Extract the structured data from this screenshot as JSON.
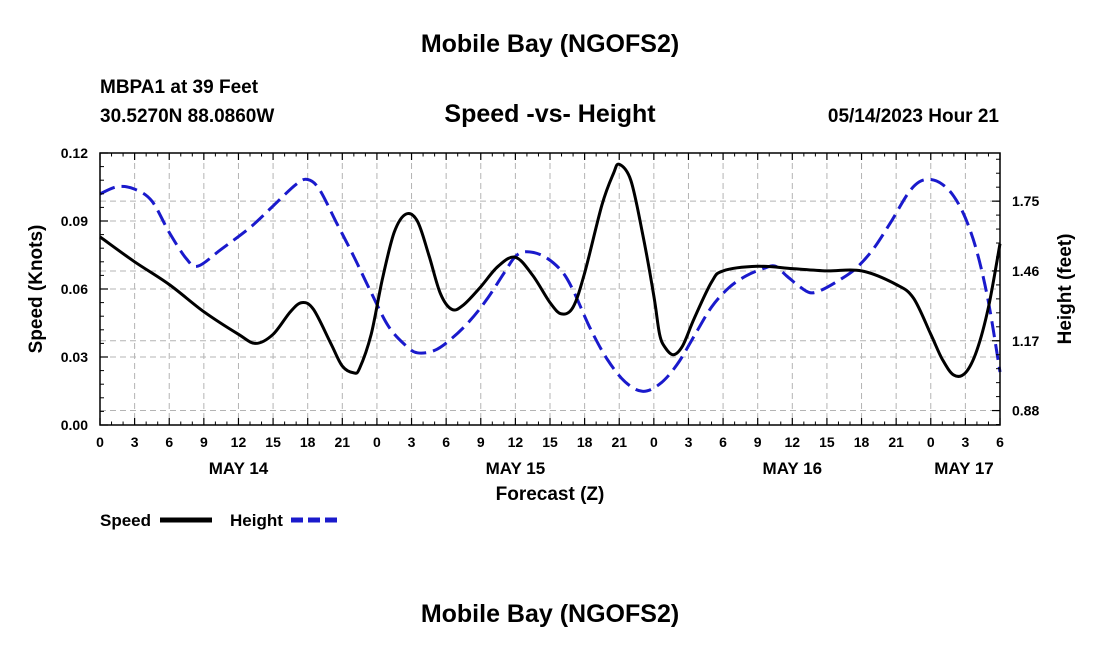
{
  "header": {
    "title": "Mobile Bay (NGOFS2)",
    "station": "MBPA1 at 39 Feet",
    "coordinates": "30.5270N  88.0860W",
    "subtitle": "Speed -vs- Height",
    "datetime": "05/14/2023 Hour 21"
  },
  "footer": {
    "title": "Mobile Bay (NGOFS2)"
  },
  "chart_data": {
    "type": "line",
    "title": "Speed -vs- Height",
    "xlabel": "Forecast (Z)",
    "ylabel_left": "Speed (Knots)",
    "ylabel_right": "Height (feet)",
    "x_unit": "hours since 05/14 00Z",
    "xlim": [
      0,
      78
    ],
    "ylim_left": [
      0,
      0.12
    ],
    "ylim_right": [
      0.82,
      1.95
    ],
    "left_ticks": [
      0.0,
      0.03,
      0.06,
      0.09,
      0.12
    ],
    "left_tick_labels": [
      "0.00",
      "0.03",
      "0.06",
      "0.09",
      "0.12"
    ],
    "right_ticks": [
      0.88,
      1.17,
      1.46,
      1.75
    ],
    "right_tick_labels": [
      "0.88",
      "1.17",
      "1.46",
      "1.75"
    ],
    "x_ticks": [
      0,
      3,
      6,
      9,
      12,
      15,
      18,
      21,
      24,
      27,
      30,
      33,
      36,
      39,
      42,
      45,
      48,
      51,
      54,
      57,
      60,
      63,
      66,
      69,
      72,
      75,
      78
    ],
    "x_tick_labels": [
      "0",
      "3",
      "6",
      "9",
      "12",
      "15",
      "18",
      "21",
      "0",
      "3",
      "6",
      "9",
      "12",
      "15",
      "18",
      "21",
      "0",
      "3",
      "6",
      "9",
      "12",
      "15",
      "18",
      "21",
      "0",
      "3",
      "6"
    ],
    "day_labels": [
      {
        "x": 12,
        "label": "MAY 14"
      },
      {
        "x": 36,
        "label": "MAY 15"
      },
      {
        "x": 60,
        "label": "MAY 16"
      },
      {
        "x": 78,
        "label": "MAY 17"
      }
    ],
    "grid": true,
    "legend": "bottom-left",
    "series": [
      {
        "name": "Speed",
        "axis": "left",
        "color": "#000000",
        "style": "solid",
        "points": [
          [
            0,
            0.083
          ],
          [
            3,
            0.072
          ],
          [
            6,
            0.062
          ],
          [
            9,
            0.05
          ],
          [
            12,
            0.04
          ],
          [
            13.5,
            0.036
          ],
          [
            15,
            0.04
          ],
          [
            16.5,
            0.05
          ],
          [
            17.5,
            0.054
          ],
          [
            18.5,
            0.051
          ],
          [
            20,
            0.036
          ],
          [
            21,
            0.026
          ],
          [
            22,
            0.023
          ],
          [
            22.5,
            0.025
          ],
          [
            23.5,
            0.04
          ],
          [
            24.5,
            0.065
          ],
          [
            25.5,
            0.085
          ],
          [
            26.5,
            0.093
          ],
          [
            27.5,
            0.09
          ],
          [
            28.5,
            0.075
          ],
          [
            29.5,
            0.058
          ],
          [
            30.5,
            0.051
          ],
          [
            31.5,
            0.053
          ],
          [
            33,
            0.061
          ],
          [
            34.5,
            0.07
          ],
          [
            36,
            0.074
          ],
          [
            37.5,
            0.066
          ],
          [
            39,
            0.054
          ],
          [
            40,
            0.049
          ],
          [
            41,
            0.052
          ],
          [
            42,
            0.067
          ],
          [
            43.5,
            0.097
          ],
          [
            44.5,
            0.111
          ],
          [
            45,
            0.115
          ],
          [
            46,
            0.108
          ],
          [
            47,
            0.085
          ],
          [
            48,
            0.057
          ],
          [
            48.5,
            0.04
          ],
          [
            49,
            0.034
          ],
          [
            49.7,
            0.031
          ],
          [
            50.5,
            0.035
          ],
          [
            51.5,
            0.047
          ],
          [
            53,
            0.063
          ],
          [
            54,
            0.068
          ],
          [
            57,
            0.07
          ],
          [
            60,
            0.069
          ],
          [
            63,
            0.068
          ],
          [
            66,
            0.068
          ],
          [
            69,
            0.062
          ],
          [
            70.5,
            0.056
          ],
          [
            72,
            0.04
          ],
          [
            73,
            0.029
          ],
          [
            74,
            0.022
          ],
          [
            75,
            0.023
          ],
          [
            76,
            0.033
          ],
          [
            77,
            0.052
          ],
          [
            78,
            0.08
          ]
        ]
      },
      {
        "name": "Height",
        "axis": "right",
        "color": "#1a1acc",
        "style": "dashed",
        "points": [
          [
            0,
            1.78
          ],
          [
            1.5,
            1.81
          ],
          [
            3,
            1.8
          ],
          [
            4.5,
            1.75
          ],
          [
            6,
            1.62
          ],
          [
            7.5,
            1.51
          ],
          [
            8.5,
            1.48
          ],
          [
            10.5,
            1.55
          ],
          [
            13,
            1.64
          ],
          [
            15,
            1.73
          ],
          [
            17,
            1.82
          ],
          [
            18,
            1.84
          ],
          [
            19,
            1.8
          ],
          [
            20.5,
            1.66
          ],
          [
            22,
            1.52
          ],
          [
            23.5,
            1.37
          ],
          [
            25,
            1.23
          ],
          [
            26.5,
            1.15
          ],
          [
            27.5,
            1.12
          ],
          [
            29,
            1.13
          ],
          [
            30.5,
            1.18
          ],
          [
            32,
            1.25
          ],
          [
            33.5,
            1.34
          ],
          [
            35,
            1.45
          ],
          [
            36,
            1.52
          ],
          [
            37,
            1.54
          ],
          [
            38.5,
            1.52
          ],
          [
            40,
            1.46
          ],
          [
            41,
            1.38
          ],
          [
            42.5,
            1.22
          ],
          [
            44,
            1.09
          ],
          [
            45.5,
            1.0
          ],
          [
            47,
            0.96
          ],
          [
            48.5,
            0.99
          ],
          [
            50,
            1.07
          ],
          [
            51.5,
            1.19
          ],
          [
            53,
            1.31
          ],
          [
            54.5,
            1.39
          ],
          [
            56,
            1.44
          ],
          [
            57.5,
            1.47
          ],
          [
            58.5,
            1.48
          ],
          [
            59.5,
            1.44
          ],
          [
            60.5,
            1.4
          ],
          [
            61.5,
            1.37
          ],
          [
            62.5,
            1.38
          ],
          [
            64,
            1.42
          ],
          [
            65.5,
            1.47
          ],
          [
            67,
            1.55
          ],
          [
            68.5,
            1.66
          ],
          [
            70,
            1.78
          ],
          [
            71,
            1.83
          ],
          [
            72,
            1.84
          ],
          [
            73,
            1.82
          ],
          [
            74,
            1.77
          ],
          [
            75,
            1.68
          ],
          [
            76,
            1.54
          ],
          [
            77,
            1.33
          ],
          [
            78,
            1.04
          ]
        ]
      }
    ]
  }
}
